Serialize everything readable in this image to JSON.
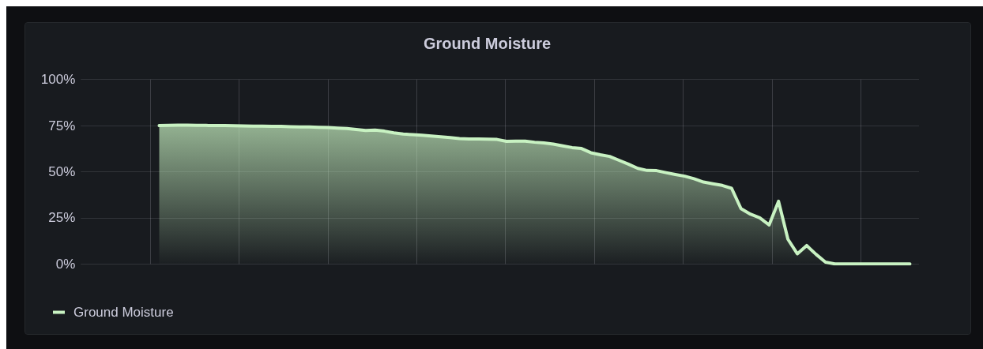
{
  "chart_data": {
    "type": "area",
    "title": "Ground Moisture",
    "categories": [
      null,
      null,
      null,
      null,
      null,
      null,
      null,
      null,
      null,
      null,
      null,
      null,
      null,
      null,
      null,
      null,
      null,
      null,
      null,
      null,
      null,
      null,
      null,
      null,
      null,
      null,
      null,
      null,
      null,
      null,
      null,
      null,
      null,
      null,
      null,
      null,
      null,
      null,
      null,
      null,
      null,
      null,
      null,
      null,
      null,
      null,
      null,
      null,
      null,
      null,
      null,
      null,
      null,
      null,
      null,
      null,
      null,
      null,
      null,
      null,
      null,
      null,
      null,
      null,
      null,
      null,
      null,
      null,
      null,
      null,
      null,
      null,
      null,
      null,
      null,
      null,
      null,
      null,
      null,
      null,
      null
    ],
    "series": [
      {
        "name": "Ground Moisture",
        "color": "#c8f2c2",
        "values": [
          75,
          75.2,
          75.3,
          75.3,
          75.2,
          75.1,
          75,
          75,
          74.9,
          74.8,
          74.7,
          74.7,
          74.6,
          74.6,
          74.4,
          74.3,
          74.3,
          74.1,
          74,
          73.7,
          73.4,
          72.9,
          72.4,
          72.6,
          72,
          71.1,
          70.4,
          70.1,
          69.8,
          69.4,
          68.9,
          68.5,
          68,
          67.8,
          67.8,
          67.7,
          67.5,
          66.5,
          66.6,
          66.6,
          66,
          65.6,
          65,
          64,
          63.1,
          62.6,
          60.3,
          59.2,
          58.3,
          56.2,
          54.1,
          51.8,
          50.7,
          50.6,
          49.5,
          48.5,
          47.6,
          46.2,
          44.4,
          43.5,
          42.6,
          41,
          30,
          27,
          25,
          21.2,
          34,
          13.4,
          5.5,
          10,
          5.2,
          1,
          0,
          0,
          0,
          0,
          0,
          0,
          0,
          0,
          0
        ]
      }
    ],
    "ylim": [
      0,
      100
    ],
    "yticks": [
      {
        "value": 0,
        "label": "0%"
      },
      {
        "value": 25,
        "label": "25%"
      },
      {
        "value": 50,
        "label": "50%"
      },
      {
        "value": 75,
        "label": "75%"
      },
      {
        "value": 100,
        "label": "100%"
      }
    ],
    "grid": true,
    "legend": "bottom left",
    "marker": "none"
  }
}
